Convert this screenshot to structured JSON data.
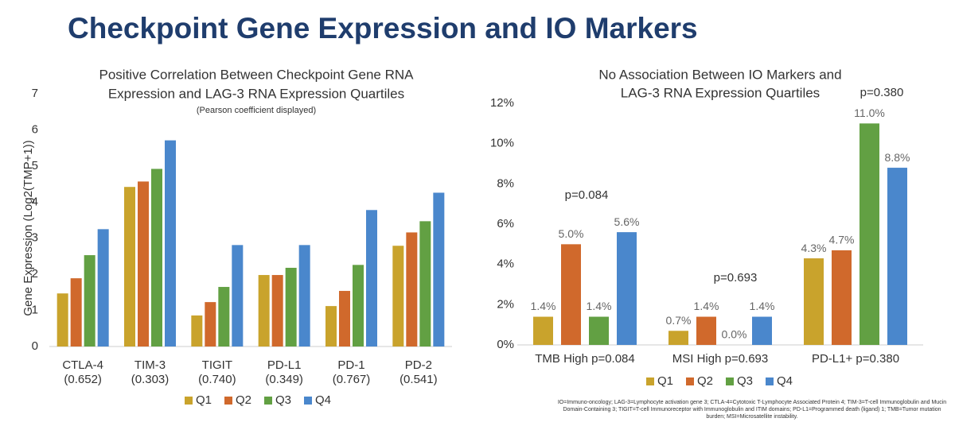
{
  "title": "Checkpoint Gene Expression and IO Markers",
  "footnote": "IO=Immuno-oncology; LAG-3=Lymphocyte activation gene 3; CTLA-4=Cytotoxic T-Lymphocyte Associated Protein 4; TIM-3=T-cell Immunoglobulin and Mucin Domain-Containing 3; TIGIT=T-cell Immunoreceptor with Immunoglobulin and ITIM domains; PD-L1=Programmed death (ligand) 1; TMB=Tumor mutation burden; MSI=Microsatellite instability.",
  "chart_data": [
    {
      "type": "bar",
      "title": [
        "Positive Correlation Between Checkpoint Gene RNA",
        "Expression and LAG-3 RNA Expression Quartiles"
      ],
      "subtitle": "(Pearson coefficient displayed)",
      "y_label": "Gene Expression (Log2(TMP+1))",
      "categories": [
        "CTLA-4",
        "TIM-3",
        "TIGIT",
        "PD-L1",
        "PD-1",
        "PD-2"
      ],
      "pearson": [
        "(0.652)",
        "(0.303)",
        "(0.740)",
        "(0.349)",
        "(0.767)",
        "(0.541)"
      ],
      "series": [
        {
          "name": "Q1",
          "color": "#c9a32c",
          "values": [
            1.47,
            4.42,
            0.86,
            1.98,
            1.12,
            2.79
          ]
        },
        {
          "name": "Q2",
          "color": "#d0692c",
          "values": [
            1.89,
            4.57,
            1.23,
            1.98,
            1.54,
            3.16
          ]
        },
        {
          "name": "Q3",
          "color": "#62a043",
          "values": [
            2.53,
            4.92,
            1.65,
            2.18,
            2.26,
            3.47
          ]
        },
        {
          "name": "Q4",
          "color": "#4a87cc",
          "values": [
            3.25,
            5.71,
            2.81,
            2.81,
            3.78,
            4.26
          ]
        }
      ],
      "ylim": [
        0,
        7
      ],
      "yticks": [
        0,
        1,
        2,
        3,
        4,
        5,
        6,
        7
      ],
      "grid": false,
      "legend": "bottom"
    },
    {
      "type": "bar",
      "title": [
        "No Association Between IO Markers and",
        "LAG-3 RNA Expression Quartiles"
      ],
      "categories": [
        "TMB High p=0.084",
        "MSI High p=0.693",
        "PD-L1+ p=0.380"
      ],
      "annotations": [
        "p=0.084",
        "p=0.693",
        "p=0.380"
      ],
      "series": [
        {
          "name": "Q1",
          "color": "#c9a32c",
          "values": [
            1.4,
            0.7,
            4.3
          ],
          "value_labels": [
            "1.4%",
            "0.7%",
            "4.3%"
          ]
        },
        {
          "name": "Q2",
          "color": "#d0692c",
          "values": [
            5.0,
            1.4,
            4.7
          ],
          "value_labels": [
            "5.0%",
            "1.4%",
            "4.7%"
          ]
        },
        {
          "name": "Q3",
          "color": "#62a043",
          "values": [
            1.4,
            0.0,
            11.0
          ],
          "value_labels": [
            "1.4%",
            "0.0%",
            "11.0%"
          ]
        },
        {
          "name": "Q4",
          "color": "#4a87cc",
          "values": [
            5.6,
            1.4,
            8.8
          ],
          "value_labels": [
            "5.6%",
            "1.4%",
            "8.8%"
          ]
        }
      ],
      "ylim": [
        0,
        12
      ],
      "yticks": [
        {
          "value": 0,
          "label": "0%"
        },
        {
          "value": 2,
          "label": "2%"
        },
        {
          "value": 4,
          "label": "4%"
        },
        {
          "value": 6,
          "label": "6%"
        },
        {
          "value": 8,
          "label": "8%"
        },
        {
          "value": 10,
          "label": "10%"
        },
        {
          "value": 12,
          "label": "12%"
        }
      ],
      "grid": false,
      "legend": "bottom"
    }
  ]
}
